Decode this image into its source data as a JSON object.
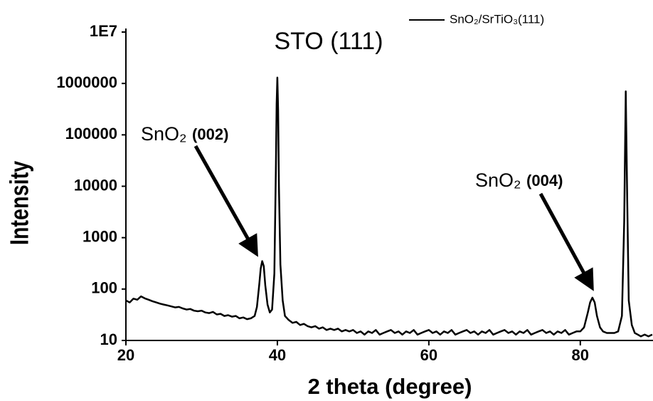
{
  "chart_data": {
    "type": "line",
    "title": "STO (111)",
    "x_label": "2 theta (degree)",
    "y_label": "Intensity",
    "log_y": true,
    "xlim": [
      20,
      89.6
    ],
    "xticks": [
      20,
      40,
      60,
      80
    ],
    "ylim": [
      10,
      10000000
    ],
    "yticks": [
      10,
      100,
      1000,
      10000,
      100000,
      1000000,
      {
        "value": 10000000,
        "label": "1E7"
      }
    ],
    "legend": "top-right",
    "annotations": [
      {
        "text": "SnO₂",
        "hkl": "(002)"
      },
      {
        "text": "SnO₂",
        "hkl": "(004)"
      }
    ],
    "x": [
      20,
      20.5,
      21,
      21.5,
      22,
      22.5,
      23,
      23.5,
      24,
      24.5,
      25,
      25.5,
      26,
      26.5,
      27,
      27.5,
      28,
      28.5,
      29,
      29.5,
      30,
      30.5,
      31,
      31.5,
      32,
      32.5,
      33,
      33.5,
      34,
      34.5,
      35,
      35.5,
      36,
      36.5,
      37,
      37.3,
      37.6,
      37.8,
      38,
      38.2,
      38.4,
      38.7,
      39,
      39.3,
      39.6,
      39.8,
      39.9,
      40,
      40.1,
      40.2,
      40.4,
      40.7,
      41,
      41.5,
      42,
      42.5,
      43,
      43.5,
      44,
      44.5,
      45,
      45.5,
      46,
      46.5,
      47,
      47.5,
      48,
      48.5,
      49,
      49.5,
      50,
      50.5,
      51,
      51.5,
      52,
      52.5,
      53,
      53.5,
      54,
      54.5,
      55,
      55.5,
      56,
      56.5,
      57,
      57.5,
      58,
      58.5,
      59,
      59.5,
      60,
      60.5,
      61,
      61.5,
      62,
      62.5,
      63,
      63.5,
      64,
      64.5,
      65,
      65.5,
      66,
      66.5,
      67,
      67.5,
      68,
      68.5,
      69,
      69.5,
      70,
      70.5,
      71,
      71.5,
      72,
      72.5,
      73,
      73.5,
      74,
      74.5,
      75,
      75.5,
      76,
      76.5,
      77,
      77.5,
      78,
      78.5,
      79,
      79.5,
      80,
      80.5,
      81,
      81.3,
      81.6,
      81.9,
      82.2,
      82.6,
      83,
      83.5,
      84,
      84.5,
      85,
      85.5,
      85.8,
      86,
      86.2,
      86.4,
      86.8,
      87.2,
      87.6,
      88,
      88.5,
      89,
      89.5
    ],
    "series": [
      {
        "name": "SnO₂/SrTiO₃(111)",
        "color": "#000000",
        "values": [
          60,
          55,
          65,
          62,
          72,
          66,
          62,
          58,
          55,
          52,
          50,
          48,
          46,
          44,
          45,
          42,
          40,
          41,
          38,
          37,
          38,
          35,
          34,
          36,
          32,
          33,
          30,
          31,
          29,
          30,
          27,
          28,
          26,
          27,
          30,
          45,
          120,
          250,
          350,
          280,
          120,
          50,
          35,
          40,
          200,
          20000,
          400000,
          1300000,
          300000,
          10000,
          300,
          60,
          30,
          25,
          22,
          23,
          20,
          21,
          19,
          18,
          19,
          17,
          18,
          16,
          17,
          16,
          17,
          15,
          16,
          15,
          16,
          14,
          15,
          13,
          15,
          14,
          16,
          13,
          14,
          15,
          16,
          14,
          15,
          13,
          15,
          14,
          16,
          13,
          14,
          15,
          16,
          14,
          15,
          13,
          15,
          14,
          16,
          13,
          14,
          15,
          16,
          14,
          15,
          13,
          15,
          14,
          16,
          13,
          14,
          15,
          16,
          14,
          15,
          13,
          15,
          14,
          16,
          13,
          14,
          15,
          16,
          14,
          15,
          13,
          15,
          14,
          16,
          13,
          14,
          15,
          15,
          18,
          35,
          55,
          68,
          55,
          30,
          18,
          15,
          14,
          14,
          14,
          15,
          30,
          2000,
          700000,
          5000,
          60,
          20,
          14,
          13,
          12,
          13,
          12,
          13
        ]
      }
    ]
  }
}
